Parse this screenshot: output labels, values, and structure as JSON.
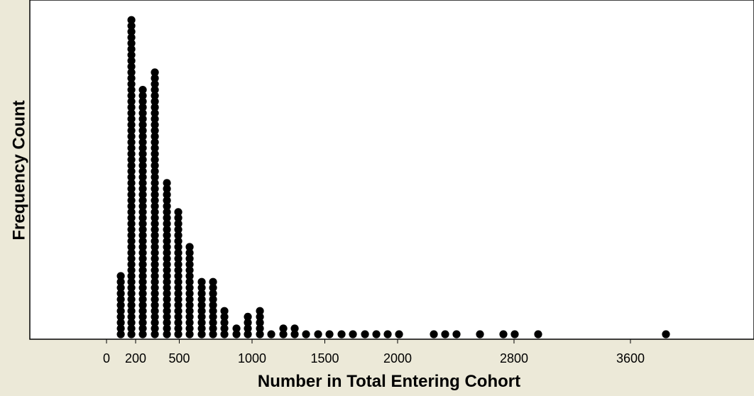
{
  "chart_data": {
    "type": "dot",
    "x_label": "Number in Total Entering Cohort",
    "y_label": "Frequency Count",
    "x": [
      98,
      171,
      249,
      332,
      415,
      493,
      571,
      654,
      732,
      810,
      893,
      971,
      1054,
      1132,
      1215,
      1293,
      1371,
      1454,
      1532,
      1615,
      1693,
      1776,
      1854,
      1932,
      2010,
      2249,
      2327,
      2405,
      2566,
      2727,
      2805,
      2966,
      3844
    ],
    "counts": [
      11,
      55,
      43,
      46,
      27,
      22,
      16,
      10,
      10,
      5,
      2,
      4,
      5,
      1,
      2,
      2,
      1,
      1,
      1,
      1,
      1,
      1,
      1,
      1,
      1,
      1,
      1,
      1,
      1,
      1,
      1,
      1,
      1
    ],
    "xlim": [
      -527,
      4449
    ],
    "xticks": [
      0,
      200,
      500,
      1000,
      1500,
      2000,
      2800,
      3600
    ],
    "color": "#000000"
  }
}
